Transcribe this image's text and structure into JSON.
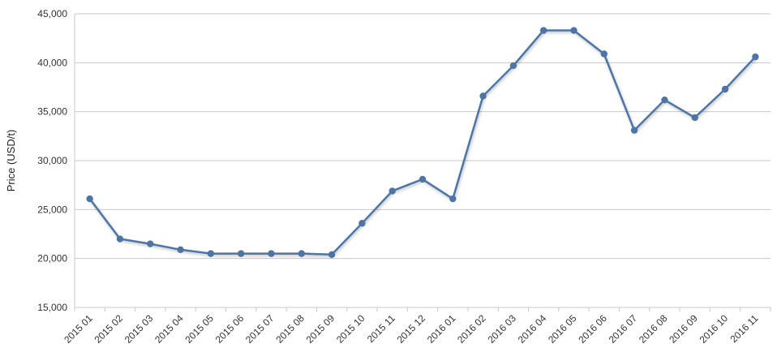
{
  "chart_data": {
    "type": "line",
    "title": "",
    "xlabel": "",
    "ylabel": "Price (USD/t)",
    "ylim": [
      15000,
      45000
    ],
    "yticks": [
      15000,
      20000,
      25000,
      30000,
      35000,
      40000,
      45000
    ],
    "ytick_labels": [
      "15,000",
      "20,000",
      "25,000",
      "30,000",
      "35,000",
      "40,000",
      "45,000"
    ],
    "grid": true,
    "legend": "none",
    "categories": [
      "2015 01",
      "2015 02",
      "2015 03",
      "2015 04",
      "2015 05",
      "2015 06",
      "2015 07",
      "2015 08",
      "2015 09",
      "2015 10",
      "2015 11",
      "2015 12",
      "2016 01",
      "2016 02",
      "2016 03",
      "2016 04",
      "2016 05",
      "2016 06",
      "2016 07",
      "2016 08",
      "2016 09",
      "2016 10",
      "2016 11"
    ],
    "series": [
      {
        "values": [
          26100,
          22000,
          21500,
          20900,
          20500,
          20500,
          20500,
          20500,
          20400,
          23600,
          26900,
          28100,
          26100,
          36600,
          39700,
          43300,
          43300,
          40900,
          33100,
          36200,
          34400,
          37300,
          40600
        ],
        "color": "#4e74a6"
      }
    ]
  }
}
